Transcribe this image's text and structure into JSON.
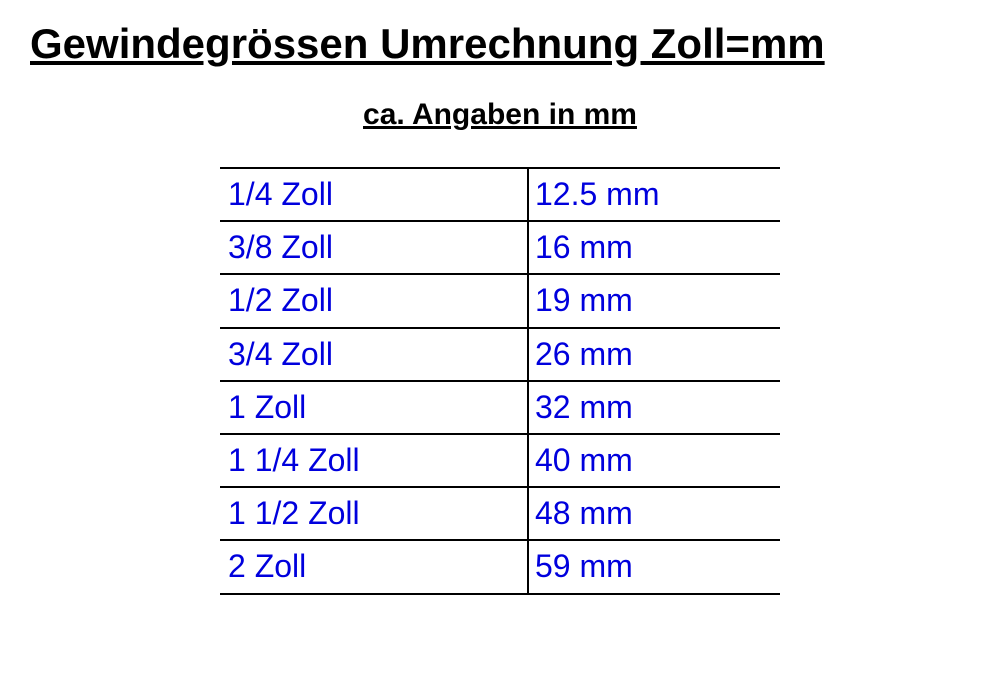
{
  "title": "Gewindegrössen Umrechnung Zoll=mm",
  "subtitle": "ca. Angaben in mm",
  "table": {
    "type": "table",
    "columns": [
      "zoll",
      "mm"
    ],
    "rows": [
      {
        "zoll": "1/4 Zoll",
        "mm": "12.5 mm"
      },
      {
        "zoll": "3/8 Zoll",
        "mm": "16 mm"
      },
      {
        "zoll": "1/2 Zoll",
        "mm": "19 mm"
      },
      {
        "zoll": "3/4 Zoll",
        "mm": "26 mm"
      },
      {
        "zoll": "1 Zoll",
        "mm": "32 mm"
      },
      {
        "zoll": "1 1/4 Zoll",
        "mm": "40 mm"
      },
      {
        "zoll": "1 1/2 Zoll",
        "mm": "48 mm"
      },
      {
        "zoll": "2 Zoll",
        "mm": "59 mm"
      }
    ],
    "cell_text_color": "#0000dd",
    "border_color": "#000000",
    "cell_fontsize": 32,
    "background_color": "#ffffff"
  },
  "title_fontsize": 42,
  "subtitle_fontsize": 30,
  "text_color": "#000000"
}
